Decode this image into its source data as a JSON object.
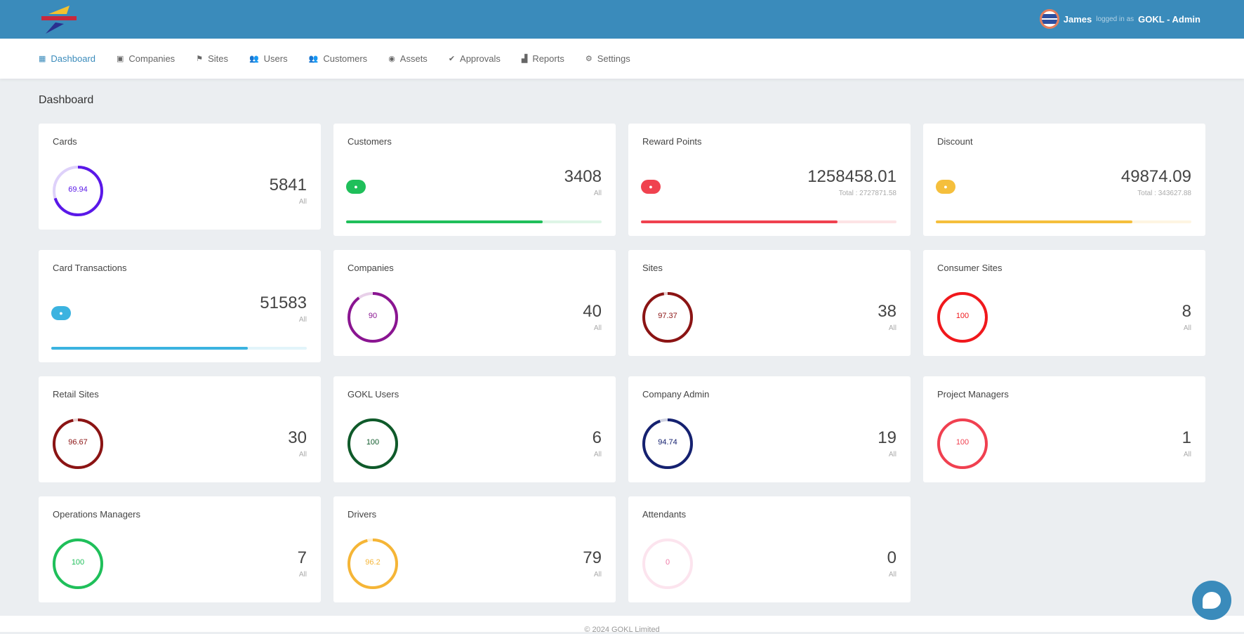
{
  "header": {
    "user_name": "James",
    "logged_in_as": "logged in as",
    "role": "GOKL - Admin"
  },
  "nav": [
    {
      "label": "Dashboard",
      "icon": "dashboard-icon"
    },
    {
      "label": "Companies",
      "icon": "building-icon"
    },
    {
      "label": "Sites",
      "icon": "sites-icon"
    },
    {
      "label": "Users",
      "icon": "users-icon"
    },
    {
      "label": "Customers",
      "icon": "customers-icon"
    },
    {
      "label": "Assets",
      "icon": "assets-icon"
    },
    {
      "label": "Approvals",
      "icon": "approvals-icon"
    },
    {
      "label": "Reports",
      "icon": "reports-icon"
    },
    {
      "label": "Settings",
      "icon": "settings-icon"
    }
  ],
  "page_title": "Dashboard",
  "cards": [
    {
      "title": "Cards",
      "type": "donut",
      "percent": 69.94,
      "percent_label": "69.94",
      "value": "5841",
      "sub": "All",
      "color": "#5a18e8"
    },
    {
      "title": "Customers",
      "type": "bar",
      "percent": 77,
      "value": "3408",
      "sub": "All",
      "color": "#1fbf5a"
    },
    {
      "title": "Reward Points",
      "type": "bar",
      "percent": 77,
      "value": "1258458.01",
      "sub": "Total : 2727871.58",
      "color": "#f0424f"
    },
    {
      "title": "Discount",
      "type": "bar",
      "percent": 77,
      "value": "49874.09",
      "sub": "Total : 343627.88",
      "color": "#f5bf3c"
    },
    {
      "title": "Card Transactions",
      "type": "bar",
      "percent": 77,
      "value": "51583",
      "sub": "All",
      "color": "#3bb3e0"
    },
    {
      "title": "Companies",
      "type": "donut",
      "percent": 90,
      "percent_label": "90",
      "value": "40",
      "sub": "All",
      "color": "#8a1591"
    },
    {
      "title": "Sites",
      "type": "donut",
      "percent": 97.37,
      "percent_label": "97.37",
      "value": "38",
      "sub": "All",
      "color": "#8b1414"
    },
    {
      "title": "Consumer Sites",
      "type": "donut",
      "percent": 100,
      "percent_label": "100",
      "value": "8",
      "sub": "All",
      "color": "#f0181c"
    },
    {
      "title": "Retail Sites",
      "type": "donut",
      "percent": 96.67,
      "percent_label": "96.67",
      "value": "30",
      "sub": "All",
      "color": "#8b1414"
    },
    {
      "title": "GOKL Users",
      "type": "donut",
      "percent": 100,
      "percent_label": "100",
      "value": "6",
      "sub": "All",
      "color": "#0f5a2a"
    },
    {
      "title": "Company Admin",
      "type": "donut",
      "percent": 94.74,
      "percent_label": "94.74",
      "value": "19",
      "sub": "All",
      "color": "#152170"
    },
    {
      "title": "Project Managers",
      "type": "donut",
      "percent": 100,
      "percent_label": "100",
      "value": "1",
      "sub": "All",
      "color": "#f04050"
    },
    {
      "title": "Operations Managers",
      "type": "donut",
      "percent": 100,
      "percent_label": "100",
      "value": "7",
      "sub": "All",
      "color": "#1fbf5a"
    },
    {
      "title": "Drivers",
      "type": "donut",
      "percent": 96.2,
      "percent_label": "96.2",
      "value": "79",
      "sub": "All",
      "color": "#f5b536"
    },
    {
      "title": "Attendants",
      "type": "donut",
      "percent": 0,
      "percent_label": "0",
      "value": "0",
      "sub": "All",
      "color": "#f07aa8"
    }
  ],
  "footer": "© 2024 GOKL Limited"
}
